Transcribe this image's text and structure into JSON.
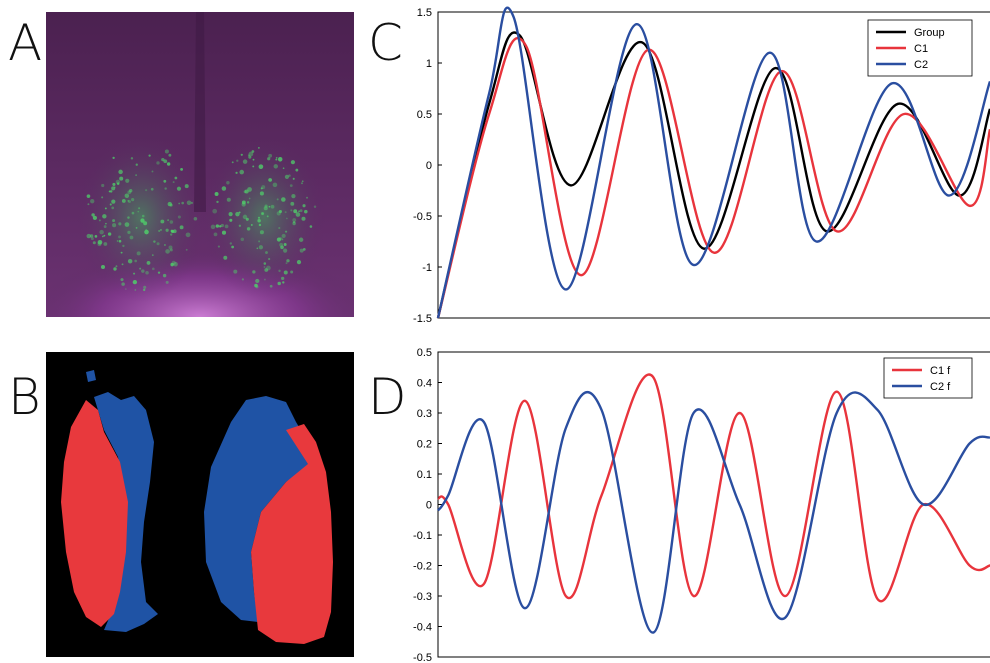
{
  "panel_letters": {
    "a": "A",
    "b": "B",
    "c": "C",
    "d": "D"
  },
  "colors": {
    "group": "#000000",
    "c1": "#e8343c",
    "c2": "#2a4ea0",
    "tissue_bg": "#5a2a63",
    "tissue_glow": "#c05ad0",
    "cell_green": "#4fcf6a",
    "map_red": "#e8393d",
    "map_blue": "#1f53a5"
  },
  "chart_data": [
    {
      "type": "line",
      "panel": "C",
      "ylim": [
        -1.5,
        1.5
      ],
      "yticks": [
        "1.5",
        "1",
        "0.5",
        "0",
        "-0.5",
        "-1",
        "-1.5"
      ],
      "yticks_values": [
        1.5,
        1,
        0.5,
        0,
        -0.5,
        -1,
        -1.5
      ],
      "grid": false,
      "legend_position": "top-right",
      "xlim": [
        0,
        54
      ],
      "series": [
        {
          "name": "Group",
          "color": "#000000",
          "x": [
            0,
            5,
            8,
            13,
            20,
            26,
            33,
            38,
            45,
            51,
            54
          ],
          "y": [
            -1.5,
            0.6,
            1.27,
            -0.2,
            1.2,
            -0.82,
            0.95,
            -0.65,
            0.6,
            -0.3,
            0.55
          ]
        },
        {
          "name": "C1",
          "color": "#e8343c",
          "x": [
            0,
            5,
            8.6,
            14,
            20.6,
            27,
            33.6,
            39,
            45.6,
            52,
            54
          ],
          "y": [
            -1.5,
            0.5,
            1.17,
            -1.08,
            1.13,
            -0.86,
            0.92,
            -0.65,
            0.5,
            -0.4,
            0.35
          ]
        },
        {
          "name": "C2",
          "color": "#2a4ea0",
          "x": [
            0,
            5,
            7.4,
            12.5,
            19.4,
            25,
            32.4,
            37,
            44.4,
            50,
            54
          ],
          "y": [
            -1.5,
            0.7,
            1.45,
            -1.22,
            1.38,
            -0.98,
            1.1,
            -0.75,
            0.8,
            -0.3,
            0.82
          ]
        }
      ]
    },
    {
      "type": "line",
      "panel": "D",
      "ylim": [
        -0.5,
        0.5
      ],
      "yticks": [
        "0.5",
        "0.4",
        "0.3",
        "0.2",
        "0.1",
        "0",
        "-0.1",
        "-0.2",
        "-0.3",
        "-0.4",
        "-0.5"
      ],
      "yticks_values": [
        0.5,
        0.4,
        0.3,
        0.2,
        0.1,
        0,
        -0.1,
        -0.2,
        -0.3,
        -0.4,
        -0.5
      ],
      "grid": false,
      "legend_position": "top-right",
      "xlim": [
        0,
        54
      ],
      "series": [
        {
          "name": "C1 f",
          "color": "#e8343c",
          "x": [
            0,
            1,
            4.5,
            8.5,
            12.5,
            16,
            21,
            25,
            29.5,
            34,
            39,
            43,
            47.5,
            52,
            54
          ],
          "y": [
            0.02,
            0.0,
            -0.26,
            0.34,
            -0.3,
            0.03,
            0.42,
            -0.3,
            0.3,
            -0.3,
            0.37,
            -0.31,
            0.0,
            -0.2,
            -0.2
          ]
        },
        {
          "name": "C2 f",
          "color": "#2a4ea0",
          "x": [
            0,
            1,
            4.5,
            8.5,
            12.5,
            16,
            21,
            25,
            29.5,
            34,
            39,
            43,
            47.5,
            52,
            54
          ],
          "y": [
            -0.02,
            0.03,
            0.27,
            -0.34,
            0.25,
            0.31,
            -0.42,
            0.3,
            0.0,
            -0.37,
            0.3,
            0.31,
            0.0,
            0.2,
            0.22
          ]
        }
      ]
    }
  ]
}
